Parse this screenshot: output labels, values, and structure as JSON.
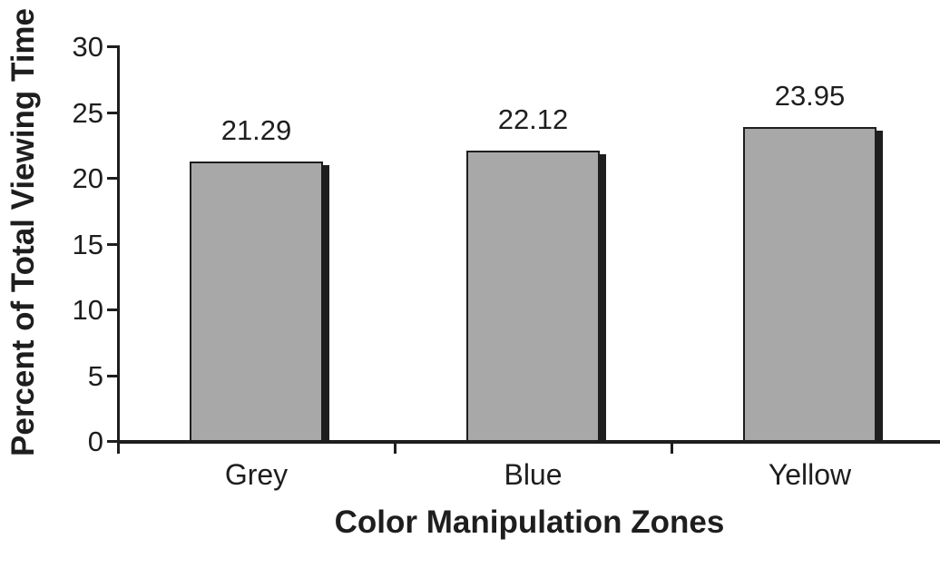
{
  "figure": {
    "background": "#ffffff"
  },
  "chart_data": {
    "type": "bar",
    "categories": [
      "Grey",
      "Blue",
      "Yellow"
    ],
    "values": [
      21.29,
      22.12,
      23.95
    ],
    "data_labels": [
      "21.29",
      "22.12",
      "23.95"
    ],
    "title": "",
    "xlabel": "Color Manipulation Zones",
    "ylabel": "Percent of Total Viewing Time",
    "ylim": [
      0,
      30
    ],
    "yticks": [
      0,
      5,
      10,
      15,
      20,
      25,
      30
    ],
    "grid": false,
    "legend": "none",
    "bar_color": "#a8a8a8",
    "bar_border_color": "#1e1e1e",
    "shadow_color": "#1e1e1e",
    "axis_color": "#1e1e1e",
    "text_color": "#1e1e1e"
  }
}
